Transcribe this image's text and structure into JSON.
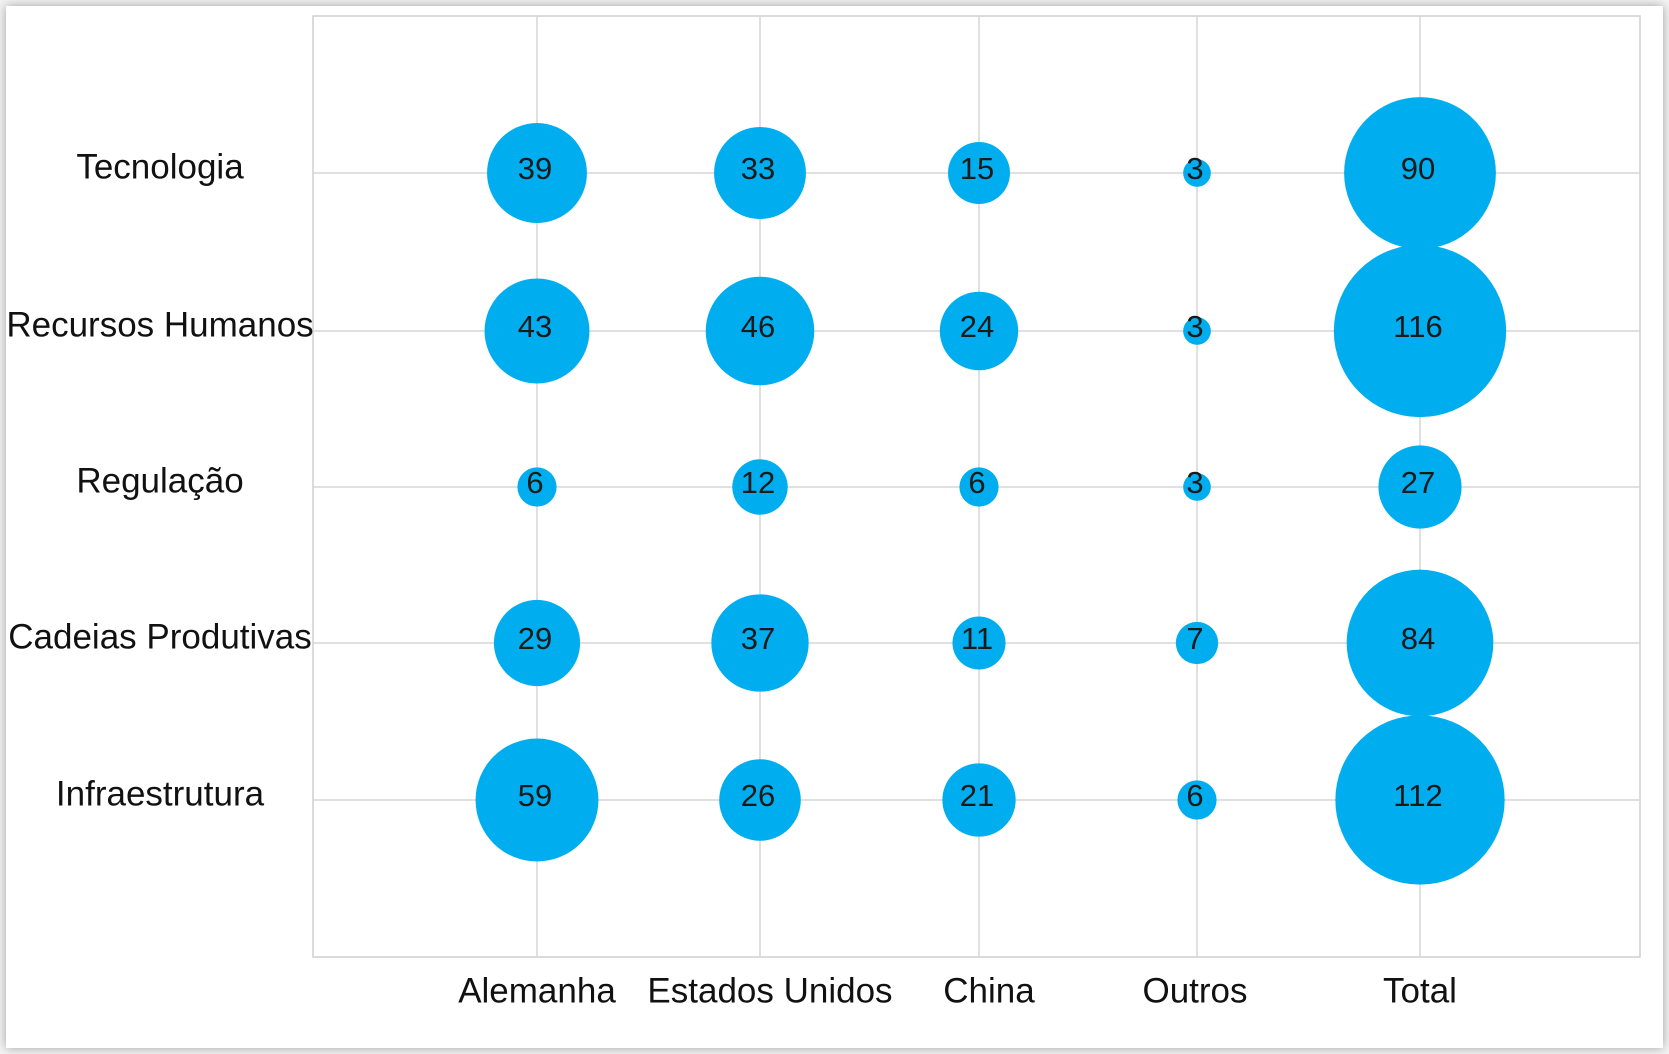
{
  "chart_data": {
    "type": "bubble",
    "title": "",
    "xlabel": "",
    "ylabel": "",
    "grid": true,
    "bubble_color": "#00aeef",
    "categories": [
      "Alemanha",
      "Estados Unidos",
      "China",
      "Outros",
      "Total"
    ],
    "rows": [
      "Tecnologia",
      "Recursos Humanos",
      "Regulação",
      "Cadeias Produtivas",
      "Infraestrutura"
    ],
    "values": [
      [
        39,
        33,
        15,
        3,
        90
      ],
      [
        43,
        46,
        24,
        3,
        116
      ],
      [
        6,
        12,
        6,
        3,
        27
      ],
      [
        29,
        37,
        11,
        7,
        84
      ],
      [
        59,
        26,
        21,
        6,
        112
      ]
    ]
  }
}
